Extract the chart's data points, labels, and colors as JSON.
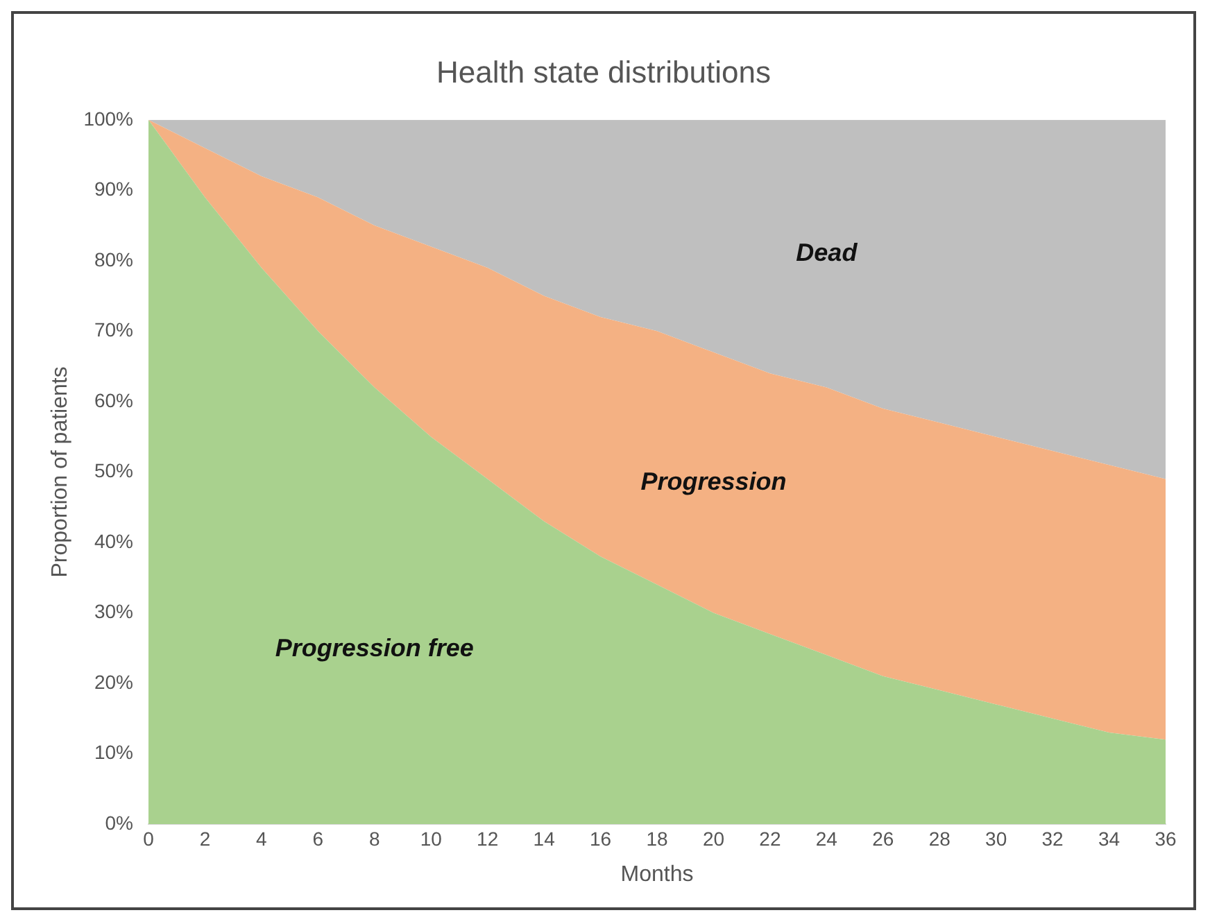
{
  "chart_data": {
    "type": "area",
    "title": "Health state distributions",
    "xlabel": "Months",
    "ylabel": "Proportion of patients",
    "stacked": true,
    "legend": false,
    "grid": false,
    "x": [
      0,
      2,
      4,
      6,
      8,
      10,
      12,
      14,
      16,
      18,
      20,
      22,
      24,
      26,
      28,
      30,
      32,
      34,
      36
    ],
    "xlim": [
      0,
      36
    ],
    "xticks": [
      0,
      2,
      4,
      6,
      8,
      10,
      12,
      14,
      16,
      18,
      20,
      22,
      24,
      26,
      28,
      30,
      32,
      34,
      36
    ],
    "ylim": [
      0,
      100
    ],
    "yticks": [
      {
        "value": 0,
        "label": "0%"
      },
      {
        "value": 10,
        "label": "10%"
      },
      {
        "value": 20,
        "label": "20%"
      },
      {
        "value": 30,
        "label": "30%"
      },
      {
        "value": 40,
        "label": "40%"
      },
      {
        "value": 50,
        "label": "50%"
      },
      {
        "value": 60,
        "label": "60%"
      },
      {
        "value": 70,
        "label": "70%"
      },
      {
        "value": 80,
        "label": "80%"
      },
      {
        "value": 90,
        "label": "90%"
      },
      {
        "value": 100,
        "label": "100%"
      }
    ],
    "series": [
      {
        "name": "Progression free",
        "color": "#a9d18e",
        "values": [
          100,
          89,
          79,
          70,
          62,
          55,
          49,
          43,
          38,
          34,
          30,
          27,
          24,
          21,
          19,
          17,
          15,
          13,
          12
        ]
      },
      {
        "name": "Progression",
        "color": "#f4b183",
        "values": [
          0,
          7,
          13,
          19,
          23,
          27,
          30,
          32,
          34,
          36,
          37,
          37,
          38,
          38,
          38,
          38,
          38,
          38,
          37
        ]
      },
      {
        "name": "Dead",
        "color": "#bfbfbf",
        "values": [
          0,
          4,
          8,
          11,
          15,
          18,
          21,
          25,
          28,
          30,
          33,
          36,
          38,
          41,
          43,
          45,
          47,
          49,
          51
        ]
      }
    ]
  }
}
